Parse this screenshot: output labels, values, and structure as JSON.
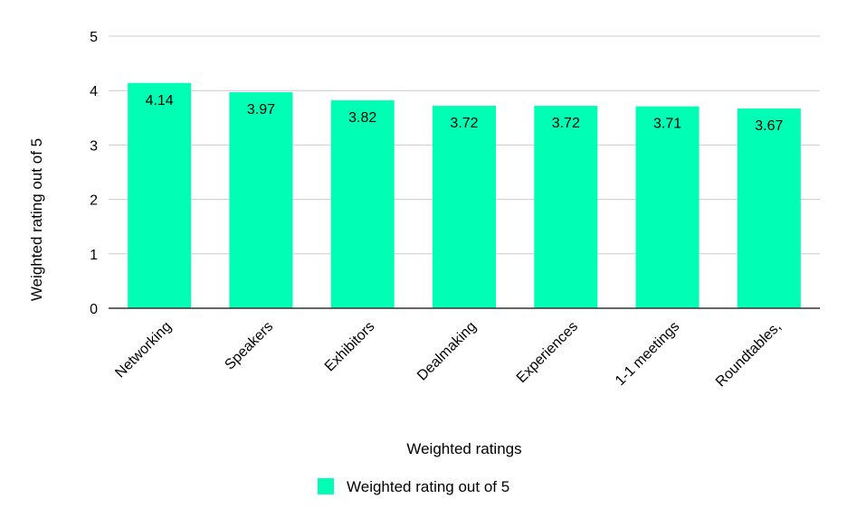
{
  "chart_data": {
    "type": "bar",
    "title": "",
    "xlabel": "Weighted ratings",
    "ylabel": "Weighted rating out of 5",
    "categories": [
      "Networking",
      "Speakers",
      "Exhibitors",
      "Dealmaking",
      "Experiences",
      "1-1 meetings",
      "Roundtables,"
    ],
    "series": [
      {
        "name": "Weighted rating out of 5",
        "values": [
          4.14,
          3.97,
          3.82,
          3.72,
          3.72,
          3.71,
          3.67
        ],
        "data_labels": [
          "4.14",
          "3.97",
          "3.82",
          "3.72",
          "3.72",
          "3.71",
          "3.67"
        ],
        "color": "#00ffb4"
      }
    ],
    "ylim": [
      0,
      5
    ],
    "yticks": [
      0,
      1,
      2,
      3,
      4,
      5
    ],
    "ytick_labels": [
      "0",
      "1",
      "2",
      "3",
      "4",
      "5"
    ],
    "grid": true,
    "legend": {
      "position": "bottom-center",
      "label": "Weighted rating out of 5"
    }
  },
  "colors": {
    "bar": "#00ffb4",
    "grid": "#cccccc",
    "axis": "#333333"
  }
}
